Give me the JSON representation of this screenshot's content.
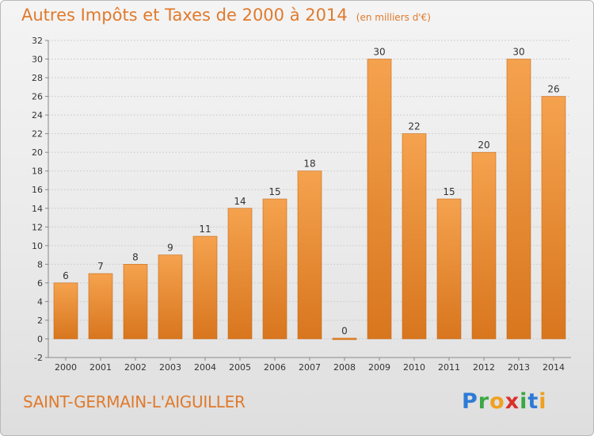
{
  "title": "Autres Impôts et Taxes de 2000 à 2014",
  "subtitle": "(en milliers d'€)",
  "commune": "SAINT-GERMAIN-L'AIGUILLER",
  "logo": {
    "letters": [
      "P",
      "r",
      "o",
      "x",
      "i",
      "t",
      "i"
    ],
    "colors": [
      "#2e7bd6",
      "#3aa845",
      "#f0a020",
      "#d9302a",
      "#3aa845",
      "#2e7bd6",
      "#f0a020"
    ]
  },
  "colors": {
    "accent": "#e07a2c",
    "bar_light": "#f5a24e",
    "bar_dark": "#d8761e"
  },
  "chart_data": {
    "type": "bar",
    "categories": [
      "2000",
      "2001",
      "2002",
      "2003",
      "2004",
      "2005",
      "2006",
      "2007",
      "2008",
      "2009",
      "2010",
      "2011",
      "2012",
      "2013",
      "2014"
    ],
    "values": [
      6,
      7,
      8,
      9,
      11,
      14,
      15,
      18,
      0,
      30,
      22,
      15,
      20,
      30,
      26
    ],
    "data_labels": [
      "6",
      "7",
      "8",
      "9",
      "11",
      "14",
      "15",
      "18",
      "0",
      "30",
      "22",
      "15",
      "20",
      "30",
      "26"
    ],
    "ylim": [
      -2,
      32
    ],
    "yticks": [
      "-2",
      "0",
      "2",
      "4",
      "6",
      "8",
      "10",
      "12",
      "14",
      "16",
      "18",
      "20",
      "22",
      "24",
      "26",
      "28",
      "30",
      "32"
    ],
    "grid": true,
    "title": "Autres Impôts et Taxes de 2000 à 2014",
    "subtitle": "(en milliers d'€)"
  }
}
